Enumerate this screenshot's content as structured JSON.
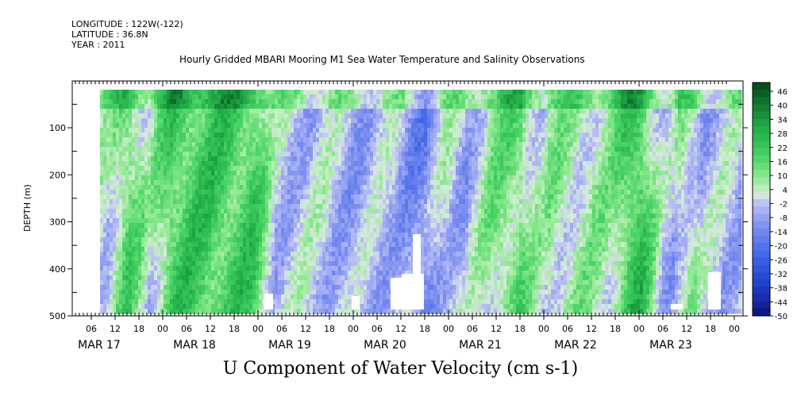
{
  "header": {
    "longitude": "LONGITUDE : 122W(-122)",
    "latitude": "LATITUDE : 36.8N",
    "year": "YEAR : 2011"
  },
  "chart_data": {
    "type": "heatmap",
    "title": "Hourly Gridded MBARI Mooring M1 Sea Water Temperature and Salinity Observations",
    "xlabel": "U Component of Water Velocity (cm s-1)",
    "ylabel": "DEPTH (m)",
    "y_axis": {
      "ticks": [
        100,
        200,
        300,
        400,
        500
      ],
      "range": [
        500,
        20
      ],
      "inverted": true
    },
    "x_axis": {
      "hour_ticks": [
        "06",
        "12",
        "18",
        "00",
        "06",
        "12",
        "18",
        "00",
        "06",
        "12",
        "18",
        "00",
        "06",
        "12",
        "18",
        "00",
        "06",
        "12",
        "18",
        "00",
        "06",
        "12",
        "18",
        "00",
        "06",
        "12",
        "18",
        "00",
        "06",
        "12",
        "18",
        "00"
      ],
      "day_labels": [
        "MAR 17",
        "MAR 18",
        "MAR 19",
        "MAR 20",
        "MAR 21",
        "MAR 22",
        "MAR 23"
      ],
      "range_hours": [
        0,
        166
      ]
    },
    "colorbar": {
      "labels": [
        "46",
        "40",
        "34",
        "28",
        "22",
        "16",
        "10",
        "4",
        "-2",
        "-8",
        "-14",
        "-20",
        "-26",
        "-32",
        "-38",
        "-44",
        "-50"
      ],
      "range": [
        -50,
        46
      ],
      "step": 3
    },
    "colors": {
      "strong_positive": "#004d1a",
      "positive": "#33cc55",
      "near_zero": "#ccf0cc",
      "negative": "#7a8ae6",
      "strong_negative": "#0a1a99"
    },
    "field_summary": "U velocity alternates between positive (green) and negative (blue) bands over depth 20-480 m from MAR 17 to MAR 23."
  }
}
